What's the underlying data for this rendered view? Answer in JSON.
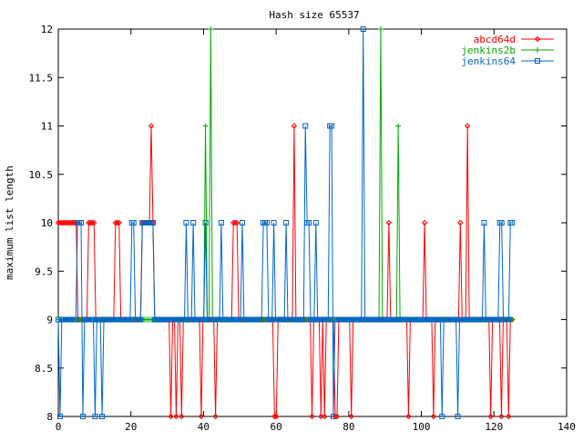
{
  "chart_data": {
    "type": "line",
    "title": "Hash size 65537",
    "xlabel": "",
    "ylabel": "maximum list length",
    "xlim": [
      0,
      140
    ],
    "ylim": [
      8,
      12
    ],
    "xticks": [
      0,
      20,
      40,
      60,
      80,
      100,
      120,
      140
    ],
    "yticks": [
      8,
      8.5,
      9,
      9.5,
      10,
      10.5,
      11,
      11.5,
      12
    ],
    "xtick_labels": [
      "0",
      "20",
      "40",
      "60",
      "80",
      "100",
      "120",
      "140"
    ],
    "ytick_labels": [
      "8",
      "8.5",
      "9",
      "9.5",
      "10",
      "10.5",
      "11",
      "11.5",
      "12"
    ],
    "grid": false,
    "legend_position": "top-right",
    "series": [
      {
        "name": "abcd64d",
        "color": "#ff0000",
        "marker": "diamond",
        "values": [
          10,
          10,
          10,
          10,
          10,
          10,
          10,
          10,
          10,
          10,
          10,
          9,
          9,
          9,
          9,
          9,
          9,
          10,
          10,
          10,
          10,
          9,
          9,
          9,
          9,
          9,
          9,
          9,
          9,
          9,
          9,
          9,
          10,
          10,
          10,
          9,
          9,
          9,
          9,
          9,
          9,
          9,
          9,
          9,
          9,
          9,
          9,
          10,
          10,
          10,
          10,
          10,
          11,
          10,
          9,
          9,
          9,
          9,
          9,
          9,
          9,
          9,
          9,
          8,
          9,
          9,
          8,
          9,
          9,
          8,
          9,
          9,
          9,
          9,
          9,
          9,
          9,
          9,
          9,
          9,
          8,
          9,
          9,
          9,
          9,
          9,
          9,
          9,
          8,
          9,
          9,
          9,
          9,
          9,
          9,
          9,
          9,
          9,
          10,
          10,
          10,
          9,
          9,
          9,
          9,
          9,
          9,
          9,
          9,
          9,
          9,
          9,
          9,
          9,
          9,
          9,
          9,
          9,
          9,
          9,
          9,
          8,
          8,
          9,
          9,
          9,
          9,
          9,
          9,
          9,
          9,
          9,
          11,
          9,
          9,
          9,
          9,
          9,
          9,
          9,
          9,
          9,
          8,
          9,
          9,
          9,
          9,
          8,
          9,
          8,
          9,
          9,
          9,
          9,
          9,
          8,
          8,
          9,
          9,
          9,
          9,
          9,
          9,
          9,
          8,
          9,
          9,
          9,
          9,
          9,
          9,
          9,
          9,
          9,
          9,
          9,
          9,
          9,
          9,
          9,
          9,
          9,
          9,
          9,
          9,
          10,
          9,
          9,
          9,
          9,
          9,
          9,
          9,
          9,
          9,
          9,
          8,
          9,
          9,
          9,
          9,
          9,
          9,
          9,
          9,
          10,
          9,
          9,
          9,
          9,
          8,
          9,
          9,
          9,
          9,
          9,
          9,
          9,
          9,
          9,
          9,
          9,
          9,
          9,
          9,
          10,
          9,
          9,
          9,
          11,
          9,
          9,
          9,
          9,
          9,
          9,
          9,
          9,
          9,
          9,
          9,
          9,
          8,
          9,
          9,
          9,
          9,
          9,
          8,
          9,
          9,
          9,
          8,
          9,
          9
        ]
      },
      {
        "name": "jenkins2b",
        "color": "#00aa00",
        "marker": "plus",
        "values": [
          9,
          9,
          9,
          9,
          9,
          9,
          9,
          9,
          9,
          9,
          9,
          9,
          9,
          9,
          9,
          9,
          9,
          9,
          9,
          9,
          9,
          9,
          9,
          9,
          9,
          9,
          9,
          9,
          9,
          9,
          9,
          9,
          9,
          9,
          9,
          9,
          9,
          9,
          9,
          9,
          9,
          9,
          9,
          9,
          9,
          9,
          9,
          9,
          9,
          9,
          9,
          9,
          9,
          9,
          9,
          9,
          9,
          9,
          9,
          9,
          9,
          9,
          9,
          9,
          9,
          9,
          9,
          9,
          9,
          9,
          9,
          9,
          9,
          9,
          9,
          9,
          9,
          9,
          9,
          9,
          9,
          9,
          9,
          9,
          11,
          9,
          9,
          12,
          9,
          9,
          9,
          9,
          9,
          9,
          9,
          9,
          9,
          9,
          9,
          9,
          9,
          9,
          9,
          9,
          9,
          9,
          9,
          9,
          9,
          9,
          9,
          9,
          9,
          9,
          9,
          9,
          9,
          9,
          9,
          9,
          9,
          9,
          9,
          9,
          9,
          9,
          9,
          9,
          9,
          9,
          9,
          9,
          9,
          9,
          9,
          9,
          9,
          9,
          9,
          9,
          9,
          9,
          9,
          9,
          9,
          9,
          9,
          9,
          9,
          9,
          9,
          9,
          9,
          9,
          9,
          9,
          9,
          9,
          9,
          9,
          9,
          9,
          9,
          9,
          9,
          9,
          9,
          9,
          9,
          9,
          9,
          9,
          9,
          9,
          9,
          9,
          9,
          9,
          9,
          9,
          9,
          9,
          9,
          9,
          12,
          9,
          9,
          9,
          9,
          9,
          9,
          9,
          9,
          9,
          11,
          9,
          9,
          9,
          9,
          9,
          9,
          9,
          9,
          9,
          9,
          9,
          9,
          9,
          9,
          9,
          9,
          9,
          9,
          9,
          9,
          9,
          9,
          9,
          9,
          9,
          9,
          9,
          9,
          9,
          9,
          9,
          9,
          9,
          9,
          9,
          9,
          9,
          9,
          9,
          9,
          9,
          9,
          9,
          9,
          9,
          9,
          9,
          9,
          9,
          9,
          9,
          9,
          9,
          9,
          9,
          9,
          9,
          9,
          9,
          9,
          9,
          9,
          9,
          9,
          9
        ]
      },
      {
        "name": "jenkins64",
        "color": "#0066cc",
        "marker": "square",
        "values": [
          9,
          8,
          9,
          9,
          9,
          9,
          9,
          9,
          9,
          9,
          9,
          10,
          10,
          10,
          8,
          9,
          9,
          9,
          9,
          9,
          9,
          8,
          9,
          9,
          9,
          8,
          9,
          9,
          9,
          9,
          9,
          9,
          9,
          9,
          9,
          9,
          9,
          9,
          9,
          9,
          9,
          9,
          10,
          10,
          9,
          9,
          9,
          9,
          10,
          10,
          10,
          10,
          10,
          10,
          10,
          9,
          9,
          9,
          9,
          9,
          9,
          9,
          9,
          9,
          9,
          9,
          9,
          9,
          9,
          9,
          9,
          9,
          9,
          10,
          9,
          9,
          9,
          10,
          9,
          9,
          9,
          9,
          9,
          9,
          10,
          9,
          9,
          9,
          9,
          9,
          9,
          9,
          9,
          10,
          9,
          9,
          9,
          9,
          9,
          9,
          9,
          9,
          9,
          9,
          9,
          10,
          9,
          9,
          9,
          9,
          9,
          9,
          9,
          9,
          9,
          9,
          9,
          10,
          10,
          10,
          9,
          9,
          9,
          10,
          9,
          9,
          9,
          9,
          9,
          9,
          10,
          9,
          9,
          9,
          9,
          9,
          9,
          9,
          9,
          9,
          9,
          11,
          10,
          10,
          9,
          9,
          9,
          10,
          9,
          9,
          9,
          9,
          9,
          9,
          9,
          11,
          11,
          8,
          9,
          9,
          9,
          9,
          9,
          9,
          9,
          9,
          9,
          9,
          9,
          9,
          9,
          9,
          9,
          9,
          12,
          9,
          9,
          9,
          9,
          9,
          9,
          9,
          9,
          9,
          9,
          9,
          9,
          9,
          9,
          9,
          9,
          9,
          9,
          9,
          9,
          9,
          9,
          9,
          9,
          9,
          9,
          9,
          9,
          9,
          9,
          9,
          9,
          9,
          9,
          9,
          9,
          9,
          9,
          9,
          9,
          9,
          9,
          9,
          9,
          8,
          9,
          9,
          9,
          9,
          9,
          9,
          9,
          9,
          8,
          9,
          9,
          9,
          9,
          9,
          9,
          9,
          9,
          9,
          9,
          9,
          9,
          9,
          9,
          10,
          9,
          9,
          9,
          9,
          9,
          9,
          9,
          9,
          10,
          10,
          9,
          9,
          9,
          9,
          10,
          10
        ]
      }
    ]
  }
}
